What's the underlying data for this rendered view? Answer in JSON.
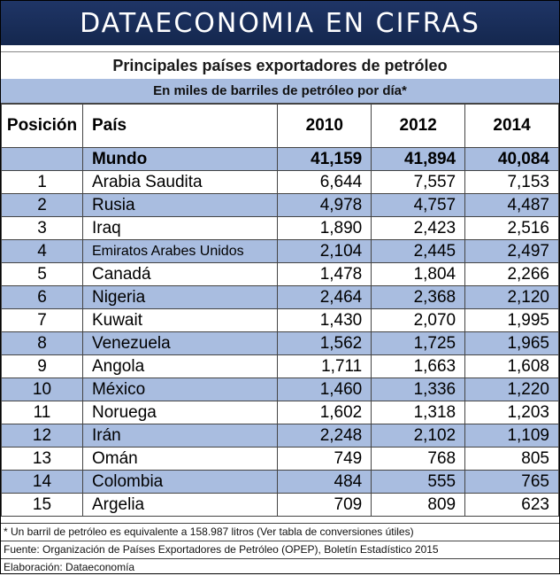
{
  "banner": "DATAECONOMIA EN CIFRAS",
  "title": "Principales países exportadores de petróleo",
  "subtitle": "En miles de barriles de petróleo por día*",
  "headers": {
    "position": "Posición",
    "country": "País",
    "years": [
      "2010",
      "2012",
      "2014"
    ]
  },
  "world": {
    "label": "Mundo",
    "values": [
      "41,159",
      "41,894",
      "40,084"
    ]
  },
  "rows": [
    {
      "pos": "1",
      "country": "Arabia Saudita",
      "values": [
        "6,644",
        "7,557",
        "7,153"
      ]
    },
    {
      "pos": "2",
      "country": "Rusia",
      "values": [
        "4,978",
        "4,757",
        "4,487"
      ]
    },
    {
      "pos": "3",
      "country": "Iraq",
      "values": [
        "1,890",
        "2,423",
        "2,516"
      ]
    },
    {
      "pos": "4",
      "country": "Emiratos Arabes Unidos",
      "values": [
        "2,104",
        "2,445",
        "2,497"
      ]
    },
    {
      "pos": "5",
      "country": "Canadá",
      "values": [
        "1,478",
        "1,804",
        "2,266"
      ]
    },
    {
      "pos": "6",
      "country": "Nigeria",
      "values": [
        "2,464",
        "2,368",
        "2,120"
      ]
    },
    {
      "pos": "7",
      "country": "Kuwait",
      "values": [
        "1,430",
        "2,070",
        "1,995"
      ]
    },
    {
      "pos": "8",
      "country": "Venezuela",
      "values": [
        "1,562",
        "1,725",
        "1,965"
      ]
    },
    {
      "pos": "9",
      "country": "Angola",
      "values": [
        "1,711",
        "1,663",
        "1,608"
      ]
    },
    {
      "pos": "10",
      "country": "México",
      "values": [
        "1,460",
        "1,336",
        "1,220"
      ]
    },
    {
      "pos": "11",
      "country": "Noruega",
      "values": [
        "1,602",
        "1,318",
        "1,203"
      ]
    },
    {
      "pos": "12",
      "country": "Irán",
      "values": [
        "2,248",
        "2,102",
        "1,109"
      ]
    },
    {
      "pos": "13",
      "country": "Omán",
      "values": [
        "749",
        "768",
        "805"
      ]
    },
    {
      "pos": "14",
      "country": "Colombia",
      "values": [
        "484",
        "555",
        "765"
      ]
    },
    {
      "pos": "15",
      "country": "Argelia",
      "values": [
        "709",
        "809",
        "623"
      ]
    }
  ],
  "footnotes": {
    "note": "* Un barril de petróleo es equivalente a 158.987 litros (Ver tabla de conversiones útiles)",
    "source": "Fuente: Organización de Países Exportadores de Petróleo (OPEP), Boletín Estadístico 2015",
    "credit": "Elaboración: Dataeconomía"
  },
  "colors": {
    "banner": "#1f3566",
    "band": "#a9bde0"
  }
}
